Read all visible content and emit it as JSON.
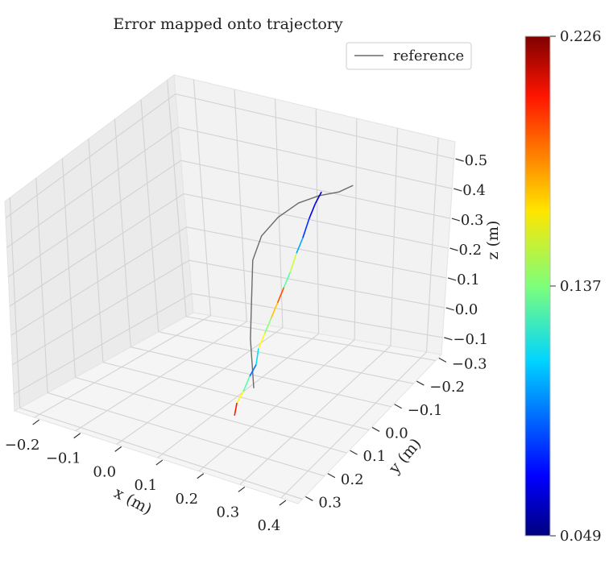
{
  "chart_data": {
    "type": "line",
    "title": "Error mapped onto trajectory",
    "legend": {
      "placement": "top-right",
      "entries": [
        {
          "label": "reference",
          "color": "#6b6b6b"
        }
      ]
    },
    "axes": {
      "x": {
        "label": "x (m)",
        "ticks": [
          "−0.2",
          "−0.1",
          "0.0",
          "0.1",
          "0.2",
          "0.3",
          "0.4"
        ],
        "lim": [
          -0.25,
          0.42
        ]
      },
      "y": {
        "label": "y (m)",
        "ticks": [
          "−0.3",
          "−0.2",
          "−0.1",
          "0.0",
          "0.1",
          "0.2",
          "0.3"
        ],
        "lim": [
          -0.35,
          0.33
        ]
      },
      "z": {
        "label": "z (m)",
        "ticks": [
          "−0.1",
          "0.0",
          "0.1",
          "0.2",
          "0.3",
          "0.4",
          "0.5"
        ],
        "lim": [
          -0.15,
          0.52
        ]
      }
    },
    "grid": true,
    "colormap": "jet",
    "colorbar": {
      "min": 0.049,
      "max": 0.226,
      "ticks": [
        "0.226",
        "0.137",
        "0.049"
      ]
    },
    "series": [
      {
        "name": "reference",
        "color": "#6b6b6b",
        "values": [
          [
            0.1,
            -0.1,
            -0.08
          ],
          [
            0.09,
            -0.09,
            -0.02
          ],
          [
            0.08,
            -0.08,
            0.04
          ],
          [
            0.07,
            -0.06,
            0.1
          ],
          [
            0.06,
            -0.04,
            0.16
          ],
          [
            0.05,
            -0.02,
            0.22
          ],
          [
            0.06,
            0.0,
            0.28
          ],
          [
            0.09,
            0.02,
            0.33
          ],
          [
            0.13,
            0.04,
            0.37
          ],
          [
            0.17,
            0.06,
            0.39
          ],
          [
            0.21,
            0.08,
            0.4
          ],
          [
            0.24,
            0.09,
            0.42
          ]
        ]
      },
      {
        "name": "",
        "colormapped": true,
        "values": [
          [
            0.2,
            0.02,
            0.43,
            0.06
          ],
          [
            0.19,
            0.01,
            0.4,
            0.07
          ],
          [
            0.18,
            0.0,
            0.36,
            0.08
          ],
          [
            0.17,
            -0.01,
            0.31,
            0.1
          ],
          [
            0.16,
            -0.02,
            0.27,
            0.15
          ],
          [
            0.15,
            -0.03,
            0.22,
            0.13
          ],
          [
            0.14,
            -0.04,
            0.18,
            0.19
          ],
          [
            0.13,
            -0.05,
            0.14,
            0.17
          ],
          [
            0.12,
            -0.06,
            0.1,
            0.14
          ],
          [
            0.11,
            -0.07,
            0.06,
            0.16
          ],
          [
            0.1,
            -0.08,
            0.02,
            0.11
          ],
          [
            0.1,
            -0.09,
            -0.02,
            0.09
          ],
          [
            0.09,
            -0.1,
            -0.05,
            0.13
          ],
          [
            0.08,
            -0.11,
            -0.09,
            0.16
          ],
          [
            0.07,
            -0.12,
            -0.12,
            0.2
          ],
          [
            0.07,
            -0.13,
            -0.15,
            0.15
          ]
        ]
      }
    ]
  }
}
